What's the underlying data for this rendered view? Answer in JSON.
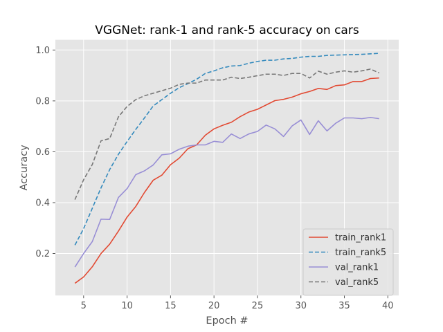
{
  "chart_data": {
    "type": "line",
    "title": "VGGNet: rank-1 and rank-5 accuracy on cars",
    "xlabel": "Epoch #",
    "ylabel": "Accuracy",
    "xlim": [
      1.75,
      41.25
    ],
    "ylim": [
      0.035,
      1.04
    ],
    "xticks": [
      5,
      10,
      15,
      20,
      25,
      30,
      35,
      40
    ],
    "yticks": [
      0.2,
      0.4,
      0.6,
      0.8,
      1.0
    ],
    "ytick_labels": [
      "0.2",
      "0.4",
      "0.6",
      "0.8",
      "1.0"
    ],
    "grid": true,
    "legend_position": "bottom-right",
    "x": [
      4,
      5,
      6,
      7,
      8,
      9,
      10,
      11,
      12,
      13,
      14,
      15,
      16,
      17,
      18,
      19,
      20,
      21,
      22,
      23,
      24,
      25,
      26,
      27,
      28,
      29,
      30,
      31,
      32,
      33,
      34,
      35,
      36,
      37,
      38,
      39
    ],
    "series": [
      {
        "name": "train_rank1",
        "color": "#E24A33",
        "dash": "solid",
        "values": [
          0.083,
          0.108,
          0.148,
          0.2,
          0.237,
          0.288,
          0.343,
          0.385,
          0.44,
          0.488,
          0.508,
          0.549,
          0.575,
          0.612,
          0.627,
          0.665,
          0.69,
          0.704,
          0.716,
          0.738,
          0.756,
          0.767,
          0.784,
          0.801,
          0.806,
          0.815,
          0.828,
          0.837,
          0.849,
          0.845,
          0.86,
          0.863,
          0.876,
          0.876,
          0.888,
          0.89
        ]
      },
      {
        "name": "train_rank5",
        "color": "#348ABD",
        "dash": "dashed",
        "values": [
          0.233,
          0.298,
          0.378,
          0.458,
          0.53,
          0.59,
          0.64,
          0.688,
          0.733,
          0.78,
          0.805,
          0.83,
          0.852,
          0.868,
          0.885,
          0.908,
          0.918,
          0.93,
          0.937,
          0.939,
          0.948,
          0.955,
          0.96,
          0.96,
          0.965,
          0.967,
          0.972,
          0.975,
          0.975,
          0.979,
          0.98,
          0.981,
          0.982,
          0.983,
          0.985,
          0.987
        ]
      },
      {
        "name": "val_rank1",
        "color": "#988ED5",
        "dash": "solid",
        "values": [
          0.147,
          0.2,
          0.247,
          0.335,
          0.334,
          0.42,
          0.455,
          0.51,
          0.525,
          0.548,
          0.588,
          0.592,
          0.61,
          0.622,
          0.627,
          0.627,
          0.641,
          0.637,
          0.67,
          0.652,
          0.67,
          0.68,
          0.705,
          0.69,
          0.66,
          0.702,
          0.725,
          0.668,
          0.722,
          0.682,
          0.712,
          0.733,
          0.733,
          0.73,
          0.735,
          0.73
        ]
      },
      {
        "name": "val_rank5",
        "color": "#777777",
        "dash": "dashed",
        "values": [
          0.412,
          0.49,
          0.55,
          0.643,
          0.652,
          0.737,
          0.778,
          0.805,
          0.82,
          0.83,
          0.84,
          0.85,
          0.865,
          0.87,
          0.87,
          0.882,
          0.882,
          0.882,
          0.893,
          0.888,
          0.893,
          0.899,
          0.905,
          0.905,
          0.9,
          0.908,
          0.908,
          0.89,
          0.917,
          0.905,
          0.913,
          0.918,
          0.913,
          0.918,
          0.925,
          0.91
        ]
      }
    ]
  }
}
